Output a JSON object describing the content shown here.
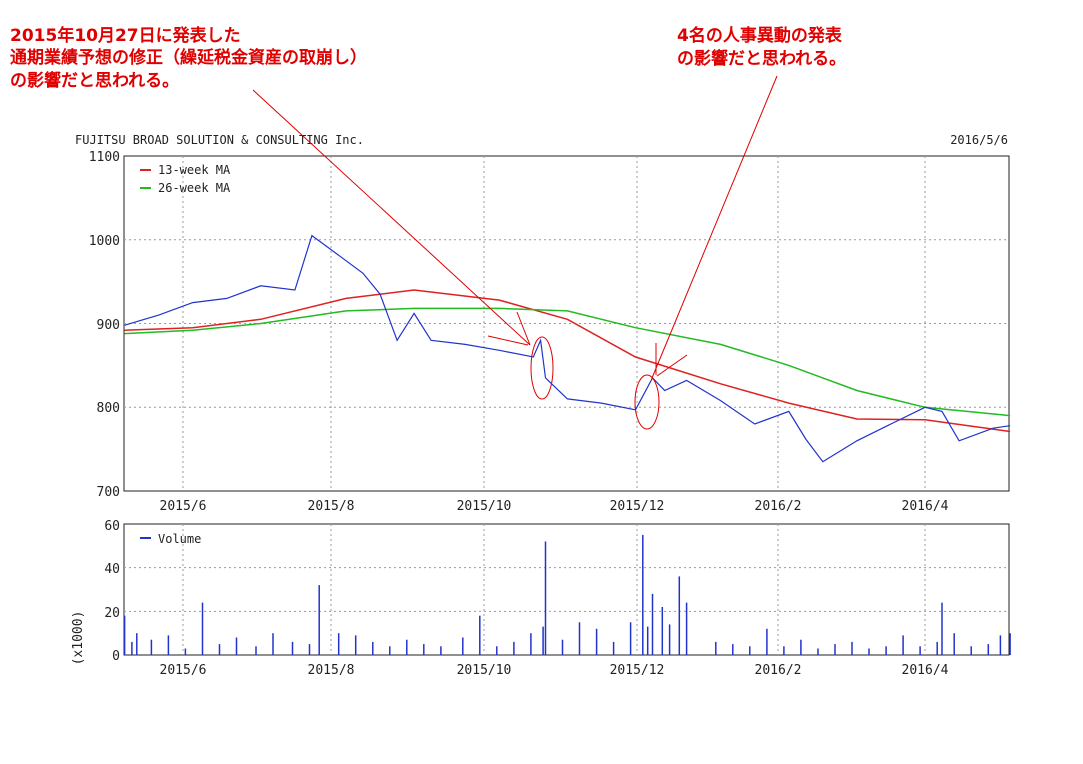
{
  "annotations": {
    "left_line1": "2015年10月27日に発表した",
    "left_line2": "通期業績予想の修正（繰延税金資産の取崩し）",
    "left_line3": "の影響だと思われる。",
    "right_line1": "4名の人事異動の発表",
    "right_line2": "の影響だと思われる。"
  },
  "chart_data": [
    {
      "type": "line",
      "title": "FUJITSU BROAD SOLUTION & CONSULTING Inc.",
      "date": "2016/5/6",
      "x_tick_labels": [
        "2015/6",
        "2015/8",
        "2015/10",
        "2015/12",
        "2016/2",
        "2016/4"
      ],
      "y_tick_labels": [
        "1100",
        "1000",
        "900",
        "800",
        "700"
      ],
      "ylim": [
        700,
        1100
      ],
      "grid": true,
      "legend_position": "top-left",
      "price_x": [
        "2015/5/8",
        "2015/5/22",
        "2015/6/5",
        "2015/6/19",
        "2015/7/3",
        "2015/7/17",
        "2015/7/24",
        "2015/7/31",
        "2015/8/7",
        "2015/8/14",
        "2015/8/21",
        "2015/8/28",
        "2015/9/4",
        "2015/9/11",
        "2015/9/25",
        "2015/10/9",
        "2015/10/23",
        "2015/10/26",
        "2015/10/28",
        "2015/11/6",
        "2015/11/20",
        "2015/12/4",
        "2015/12/11",
        "2015/12/16",
        "2015/12/25",
        "2016/1/8",
        "2016/1/22",
        "2016/2/5",
        "2016/2/12",
        "2016/2/19",
        "2016/3/4",
        "2016/3/18",
        "2016/4/1",
        "2016/4/8",
        "2016/4/15",
        "2016/4/29",
        "2016/5/6"
      ],
      "price": [
        898,
        910,
        925,
        930,
        945,
        940,
        1005,
        990,
        975,
        960,
        935,
        880,
        912,
        880,
        875,
        868,
        860,
        880,
        835,
        810,
        805,
        797,
        835,
        820,
        832,
        808,
        780,
        795,
        762,
        735,
        760,
        780,
        800,
        795,
        760,
        775,
        778
      ],
      "series": [
        {
          "name": "13-week MA",
          "color": "#dd2222",
          "x": [
            "2015/5/8",
            "2015/6/5",
            "2015/7/3",
            "2015/8/7",
            "2015/9/4",
            "2015/10/9",
            "2015/11/6",
            "2015/12/4",
            "2016/1/8",
            "2016/2/5",
            "2016/3/4",
            "2016/4/1",
            "2016/5/6"
          ],
          "values": [
            892,
            895,
            905,
            930,
            940,
            928,
            905,
            860,
            828,
            805,
            786,
            785,
            771
          ]
        },
        {
          "name": "26-week MA",
          "color": "#22bb22",
          "x": [
            "2015/5/8",
            "2015/6/5",
            "2015/7/3",
            "2015/8/7",
            "2015/9/4",
            "2015/10/9",
            "2015/11/6",
            "2015/12/4",
            "2016/1/8",
            "2016/2/5",
            "2016/3/4",
            "2016/4/1",
            "2016/5/6"
          ],
          "values": [
            888,
            892,
            900,
            915,
            918,
            918,
            915,
            895,
            875,
            850,
            820,
            800,
            790
          ]
        }
      ]
    },
    {
      "type": "bar",
      "y_axis_label": "(x1000)",
      "y_tick_labels": [
        "60",
        "40",
        "20",
        "0"
      ],
      "ylim": [
        0,
        60
      ],
      "grid": true,
      "legend_position": "top-left",
      "x_tick_labels": [
        "2015/6",
        "2015/8",
        "2015/10",
        "2015/12",
        "2016/2",
        "2016/4"
      ],
      "series": [
        {
          "name": "Volume",
          "color": "#2233cc",
          "x": [
            "2015/5/8",
            "2015/5/11",
            "2015/5/13",
            "2015/5/19",
            "2015/5/26",
            "2015/6/2",
            "2015/6/9",
            "2015/6/16",
            "2015/6/23",
            "2015/7/1",
            "2015/7/8",
            "2015/7/16",
            "2015/7/23",
            "2015/7/27",
            "2015/8/4",
            "2015/8/11",
            "2015/8/18",
            "2015/8/25",
            "2015/9/1",
            "2015/9/8",
            "2015/9/15",
            "2015/9/24",
            "2015/10/1",
            "2015/10/8",
            "2015/10/15",
            "2015/10/22",
            "2015/10/27",
            "2015/10/28",
            "2015/11/4",
            "2015/11/11",
            "2015/11/18",
            "2015/11/25",
            "2015/12/2",
            "2015/12/7",
            "2015/12/9",
            "2015/12/11",
            "2015/12/15",
            "2015/12/18",
            "2015/12/22",
            "2015/12/25",
            "2016/1/6",
            "2016/1/13",
            "2016/1/20",
            "2016/1/27",
            "2016/2/3",
            "2016/2/10",
            "2016/2/17",
            "2016/2/24",
            "2016/3/2",
            "2016/3/9",
            "2016/3/16",
            "2016/3/23",
            "2016/3/30",
            "2016/4/6",
            "2016/4/8",
            "2016/4/13",
            "2016/4/20",
            "2016/4/27",
            "2016/5/2",
            "2016/5/6"
          ],
          "values": [
            18,
            6,
            10,
            7,
            9,
            3,
            24,
            5,
            8,
            4,
            10,
            6,
            5,
            32,
            10,
            9,
            6,
            4,
            7,
            5,
            4,
            8,
            18,
            4,
            6,
            10,
            13,
            52,
            7,
            15,
            12,
            6,
            15,
            55,
            13,
            28,
            22,
            14,
            36,
            24,
            6,
            5,
            4,
            12,
            4,
            7,
            3,
            5,
            6,
            3,
            4,
            9,
            4,
            6,
            24,
            10,
            4,
            5,
            9,
            10
          ]
        }
      ]
    }
  ]
}
